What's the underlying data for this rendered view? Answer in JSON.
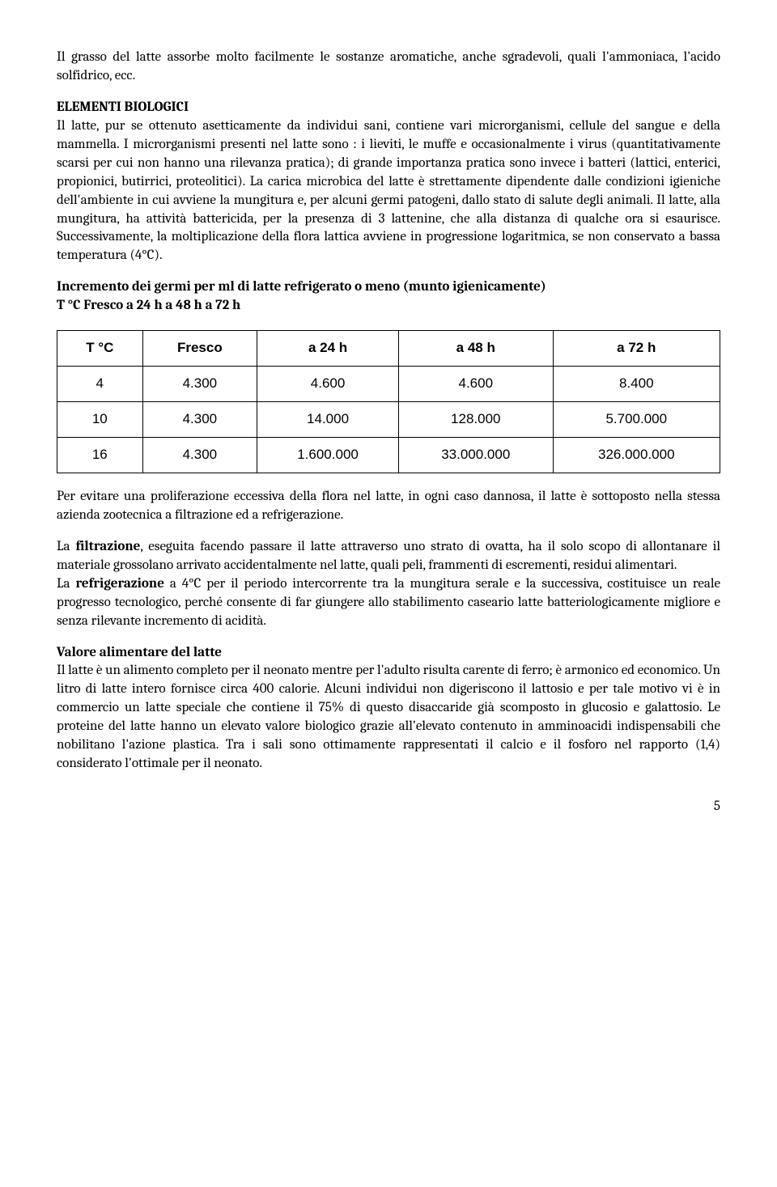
{
  "paragraphs": {
    "intro": "Il grasso del latte assorbe molto facilmente le sostanze aromatiche, anche sgradevoli, quali l'ammoniaca, l'acido solfidrico, ecc.",
    "elementi_title": "ELEMENTI BIOLOGICI",
    "elementi_body": "Il latte, pur se ottenuto asetticamente da individui sani, contiene vari microrganismi, cellule del sangue e della mammella. I microrganismi presenti nel latte sono : i lieviti, le muffe e occasionalmente i virus (quantitativamente scarsi per cui non hanno una rilevanza pratica); di grande importanza pratica sono invece i batteri (lattici, enterici, propionici, butirrici, proteolitici). La carica microbica del latte è strettamente dipendente dalle condizioni igieniche dell'ambiente in cui avviene la mungitura e, per alcuni germi patogeni, dallo stato di salute degli animali. Il latte, alla mungitura, ha attività battericida, per la presenza di 3 lattenine, che alla distanza di qualche ora si esaurisce. Successivamente, la moltiplicazione della flora lattica avviene in progressione logaritmica, se non conservato a bassa temperatura (4°C).",
    "table_title1": "Incremento dei germi per ml di latte refrigerato o meno (munto igienicamente)",
    "table_title2": "T °C Fresco a 24 h a 48 h a 72 h",
    "after_table": "Per evitare una proliferazione eccessiva della flora nel latte, in ogni caso dannosa, il latte è sottoposto nella stessa azienda zootecnica a filtrazione ed a refrigerazione.",
    "filtrazione_pre": "La ",
    "filtrazione_bold": "filtrazione",
    "filtrazione_post": ", eseguita facendo passare il latte attraverso uno strato di ovatta, ha il solo scopo di allontanare il materiale grossolano arrivato accidentalmente nel latte, quali peli, frammenti di escrementi, residui alimentari.",
    "refrigerazione_pre": "La ",
    "refrigerazione_bold": "refrigerazione",
    "refrigerazione_post": " a 4°C per il periodo intercorrente tra la mungitura serale e la successiva, costituisce un reale progresso tecnologico, perché consente di far giungere allo stabilimento caseario latte batteriologicamente migliore e senza rilevante incremento di acidità.",
    "valore_title": "Valore alimentare del latte",
    "valore_body": "Il latte è un alimento completo per il neonato mentre per l'adulto risulta carente di ferro; è armonico ed economico. Un litro di latte intero fornisce circa 400 calorie. Alcuni individui non digeriscono il lattosio e per tale motivo vi è in commercio un latte speciale che contiene il 75% di questo disaccaride già scomposto in glucosio e galattosio. Le proteine del latte hanno un elevato valore biologico grazie all'elevato contenuto in amminoacidi indispensabili che nobilitano l'azione plastica. Tra i sali sono ottimamente rappresentati il calcio e il fosforo nel rapporto (1,4) considerato l'ottimale per il neonato."
  },
  "table": {
    "columns": [
      "T °C",
      "Fresco",
      "a 24 h",
      "a 48 h",
      "a 72 h"
    ],
    "rows": [
      [
        "4",
        "4.300",
        "4.600",
        "4.600",
        "8.400"
      ],
      [
        "10",
        "4.300",
        "14.000",
        "128.000",
        "5.700.000"
      ],
      [
        "16",
        "4.300",
        "1.600.000",
        "33.000.000",
        "326.000.000"
      ]
    ]
  },
  "page_number": "5"
}
